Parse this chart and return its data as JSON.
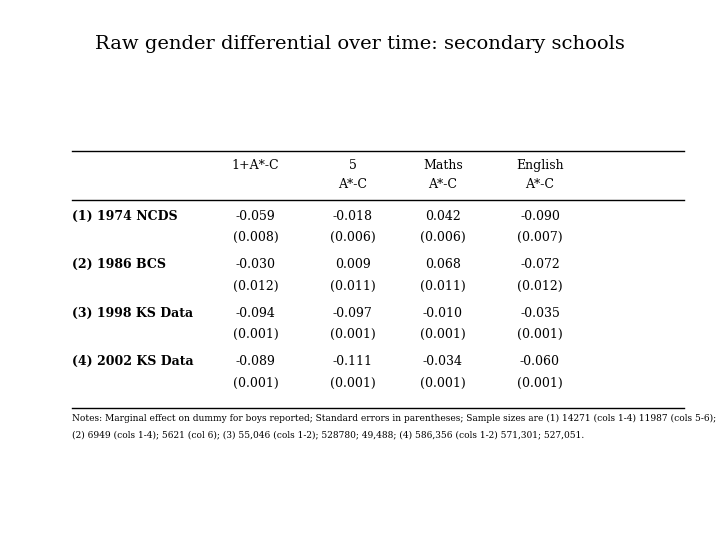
{
  "title": "Raw gender differential over time: secondary schools",
  "col_headers_line1": [
    "1+A*-C",
    "5",
    "Maths",
    "English"
  ],
  "col_headers_line2": [
    "",
    "A*-C",
    "A*-C",
    "A*-C"
  ],
  "row_labels": [
    "(1) 1974 NCDS",
    "(2) 1986 BCS",
    "(3) 1998 KS Data",
    "(4) 2002 KS Data"
  ],
  "values": [
    [
      "-0.059",
      "-0.018",
      "0.042",
      "-0.090"
    ],
    [
      "-0.030",
      "0.009",
      "0.068",
      "-0.072"
    ],
    [
      "-0.094",
      "-0.097",
      "-0.010",
      "-0.035"
    ],
    [
      "-0.089",
      "-0.111",
      "-0.034",
      "-0.060"
    ]
  ],
  "se": [
    [
      "(0.008)",
      "(0.006)",
      "(0.006)",
      "(0.007)"
    ],
    [
      "(0.012)",
      "(0.011)",
      "(0.011)",
      "(0.012)"
    ],
    [
      "(0.001)",
      "(0.001)",
      "(0.001)",
      "(0.001)"
    ],
    [
      "(0.001)",
      "(0.001)",
      "(0.001)",
      "(0.001)"
    ]
  ],
  "footnote_line1": "Notes: Marginal effect on dummy for boys reported; Standard errors in parentheses; Sample sizes are (1) 14271 (cols 1-4) 11987 (cols 5-6);",
  "footnote_line2": "(2) 6949 (cols 1-4); 5621 (col 6); (3) 55,046 (cols 1-2); 528780; 49,488; (4) 586,356 (cols 1-2) 571,301; 527,051.",
  "background_color": "#ffffff",
  "title_fontsize": 14,
  "body_fontsize": 9,
  "footnote_fontsize": 6.5
}
